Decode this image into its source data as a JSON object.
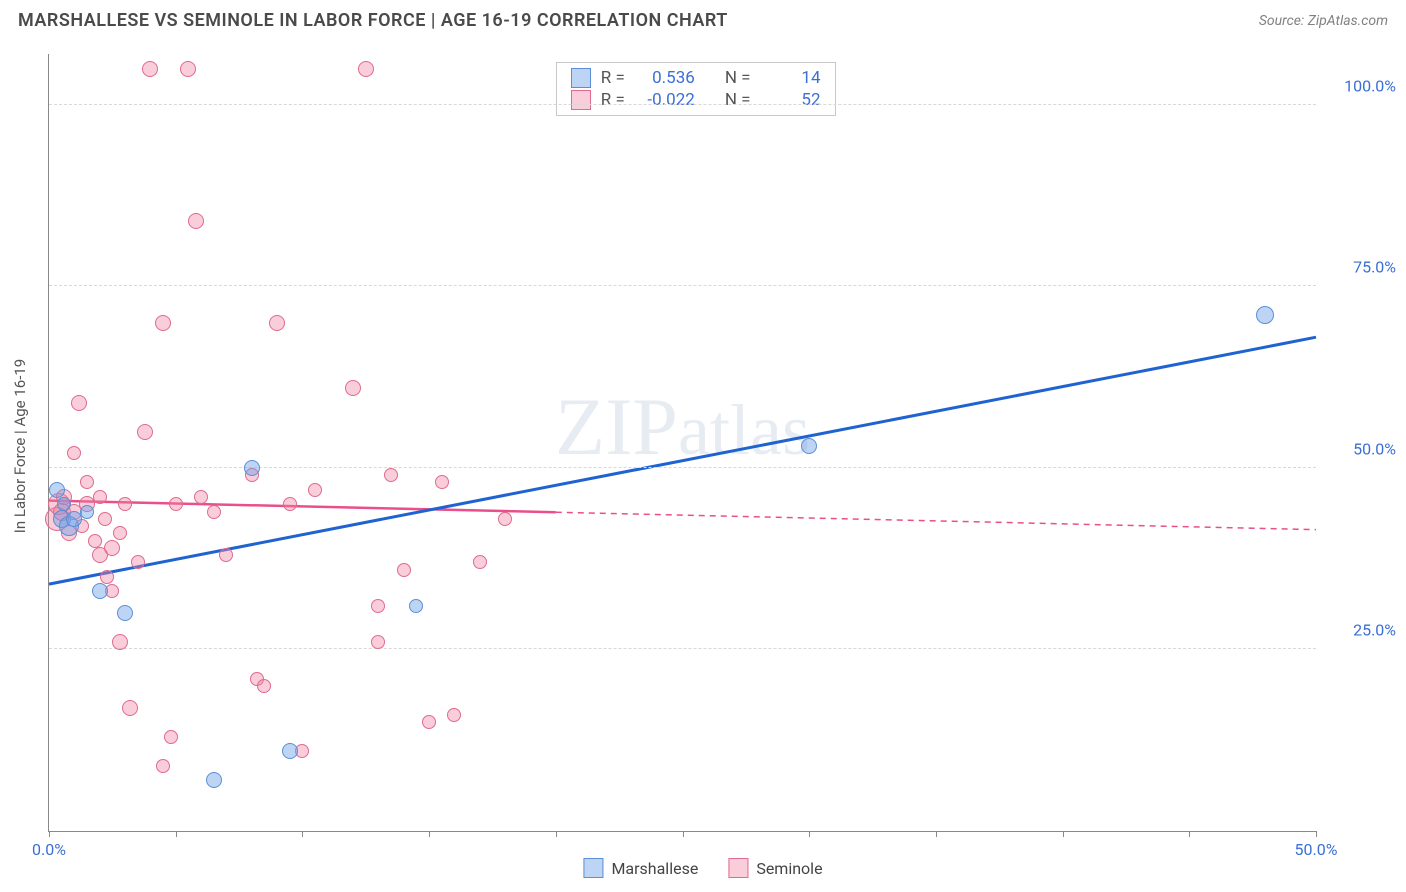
{
  "title": "MARSHALLESE VS SEMINOLE IN LABOR FORCE | AGE 16-19 CORRELATION CHART",
  "source": "Source: ZipAtlas.com",
  "ylabel": "In Labor Force | Age 16-19",
  "watermark_big": "ZIP",
  "watermark_small": "atlas",
  "chart": {
    "xlim": [
      0,
      50
    ],
    "ylim": [
      0,
      107
    ],
    "xticks": [
      0,
      5,
      10,
      15,
      20,
      25,
      30,
      35,
      40,
      45,
      50
    ],
    "xtick_labels": {
      "0": "0.0%",
      "50": "50.0%"
    },
    "yticks": [
      25,
      50,
      75,
      100
    ],
    "ytick_labels": {
      "25": "25.0%",
      "50": "50.0%",
      "75": "75.0%",
      "100": "100.0%"
    },
    "grid_color": "#d8d8d8",
    "background": "#ffffff"
  },
  "series": {
    "marshallese": {
      "label": "Marshallese",
      "fill": "rgba(110,160,230,0.45)",
      "stroke": "#5a8fd6",
      "line_color": "#1e63d0",
      "line_width": 3,
      "R": "0.536",
      "N": "14",
      "trend": {
        "x1": 0,
        "y1": 34,
        "x2": 50,
        "y2": 68,
        "solid_until": 50
      },
      "points": [
        {
          "x": 0.3,
          "y": 47,
          "r": 8
        },
        {
          "x": 0.5,
          "y": 43,
          "r": 9
        },
        {
          "x": 0.6,
          "y": 45,
          "r": 7
        },
        {
          "x": 0.8,
          "y": 42,
          "r": 10
        },
        {
          "x": 1.0,
          "y": 43,
          "r": 8
        },
        {
          "x": 1.5,
          "y": 44,
          "r": 7
        },
        {
          "x": 2.0,
          "y": 33,
          "r": 8
        },
        {
          "x": 3.0,
          "y": 30,
          "r": 8
        },
        {
          "x": 6.5,
          "y": 7,
          "r": 8
        },
        {
          "x": 8.0,
          "y": 50,
          "r": 8
        },
        {
          "x": 9.5,
          "y": 11,
          "r": 8
        },
        {
          "x": 14.5,
          "y": 31,
          "r": 7
        },
        {
          "x": 30.0,
          "y": 53,
          "r": 8
        },
        {
          "x": 48.0,
          "y": 71,
          "r": 9
        }
      ]
    },
    "seminole": {
      "label": "Seminole",
      "fill": "rgba(240,130,160,0.40)",
      "stroke": "#e06a90",
      "line_color": "#e94f8a",
      "line_width": 2.5,
      "R": "-0.022",
      "N": "52",
      "trend": {
        "x1": 0,
        "y1": 45.5,
        "x2": 50,
        "y2": 41.5,
        "solid_until": 20
      },
      "points": [
        {
          "x": 0.3,
          "y": 43,
          "r": 12
        },
        {
          "x": 0.4,
          "y": 45,
          "r": 11
        },
        {
          "x": 0.5,
          "y": 44,
          "r": 9
        },
        {
          "x": 0.6,
          "y": 46,
          "r": 8
        },
        {
          "x": 0.8,
          "y": 41,
          "r": 8
        },
        {
          "x": 1.0,
          "y": 44,
          "r": 8
        },
        {
          "x": 1.0,
          "y": 52,
          "r": 7
        },
        {
          "x": 1.2,
          "y": 59,
          "r": 8
        },
        {
          "x": 1.3,
          "y": 42,
          "r": 7
        },
        {
          "x": 1.5,
          "y": 45,
          "r": 8
        },
        {
          "x": 1.5,
          "y": 48,
          "r": 7
        },
        {
          "x": 1.8,
          "y": 40,
          "r": 7
        },
        {
          "x": 2.0,
          "y": 38,
          "r": 8
        },
        {
          "x": 2.0,
          "y": 46,
          "r": 7
        },
        {
          "x": 2.2,
          "y": 43,
          "r": 7
        },
        {
          "x": 2.3,
          "y": 35,
          "r": 7
        },
        {
          "x": 2.5,
          "y": 39,
          "r": 8
        },
        {
          "x": 2.5,
          "y": 33,
          "r": 7
        },
        {
          "x": 2.8,
          "y": 41,
          "r": 7
        },
        {
          "x": 2.8,
          "y": 26,
          "r": 8
        },
        {
          "x": 3.0,
          "y": 45,
          "r": 7
        },
        {
          "x": 3.2,
          "y": 17,
          "r": 8
        },
        {
          "x": 3.5,
          "y": 37,
          "r": 7
        },
        {
          "x": 3.8,
          "y": 55,
          "r": 8
        },
        {
          "x": 4.0,
          "y": 105,
          "r": 8
        },
        {
          "x": 4.5,
          "y": 70,
          "r": 8
        },
        {
          "x": 4.5,
          "y": 9,
          "r": 7
        },
        {
          "x": 4.8,
          "y": 13,
          "r": 7
        },
        {
          "x": 5.0,
          "y": 45,
          "r": 7
        },
        {
          "x": 5.5,
          "y": 105,
          "r": 8
        },
        {
          "x": 5.8,
          "y": 84,
          "r": 8
        },
        {
          "x": 6.0,
          "y": 46,
          "r": 7
        },
        {
          "x": 6.5,
          "y": 44,
          "r": 7
        },
        {
          "x": 7.0,
          "y": 38,
          "r": 7
        },
        {
          "x": 8.0,
          "y": 49,
          "r": 7
        },
        {
          "x": 8.2,
          "y": 21,
          "r": 7
        },
        {
          "x": 8.5,
          "y": 20,
          "r": 7
        },
        {
          "x": 9.0,
          "y": 70,
          "r": 8
        },
        {
          "x": 9.5,
          "y": 45,
          "r": 7
        },
        {
          "x": 10.0,
          "y": 11,
          "r": 7
        },
        {
          "x": 10.5,
          "y": 47,
          "r": 7
        },
        {
          "x": 12.0,
          "y": 61,
          "r": 8
        },
        {
          "x": 12.5,
          "y": 105,
          "r": 8
        },
        {
          "x": 13.0,
          "y": 31,
          "r": 7
        },
        {
          "x": 13.0,
          "y": 26,
          "r": 7
        },
        {
          "x": 13.5,
          "y": 49,
          "r": 7
        },
        {
          "x": 14.0,
          "y": 36,
          "r": 7
        },
        {
          "x": 15.0,
          "y": 15,
          "r": 7
        },
        {
          "x": 15.5,
          "y": 48,
          "r": 7
        },
        {
          "x": 16.0,
          "y": 16,
          "r": 7
        },
        {
          "x": 17.0,
          "y": 37,
          "r": 7
        },
        {
          "x": 18.0,
          "y": 43,
          "r": 7
        }
      ]
    }
  },
  "stats_labels": {
    "R": "R =",
    "N": "N ="
  }
}
